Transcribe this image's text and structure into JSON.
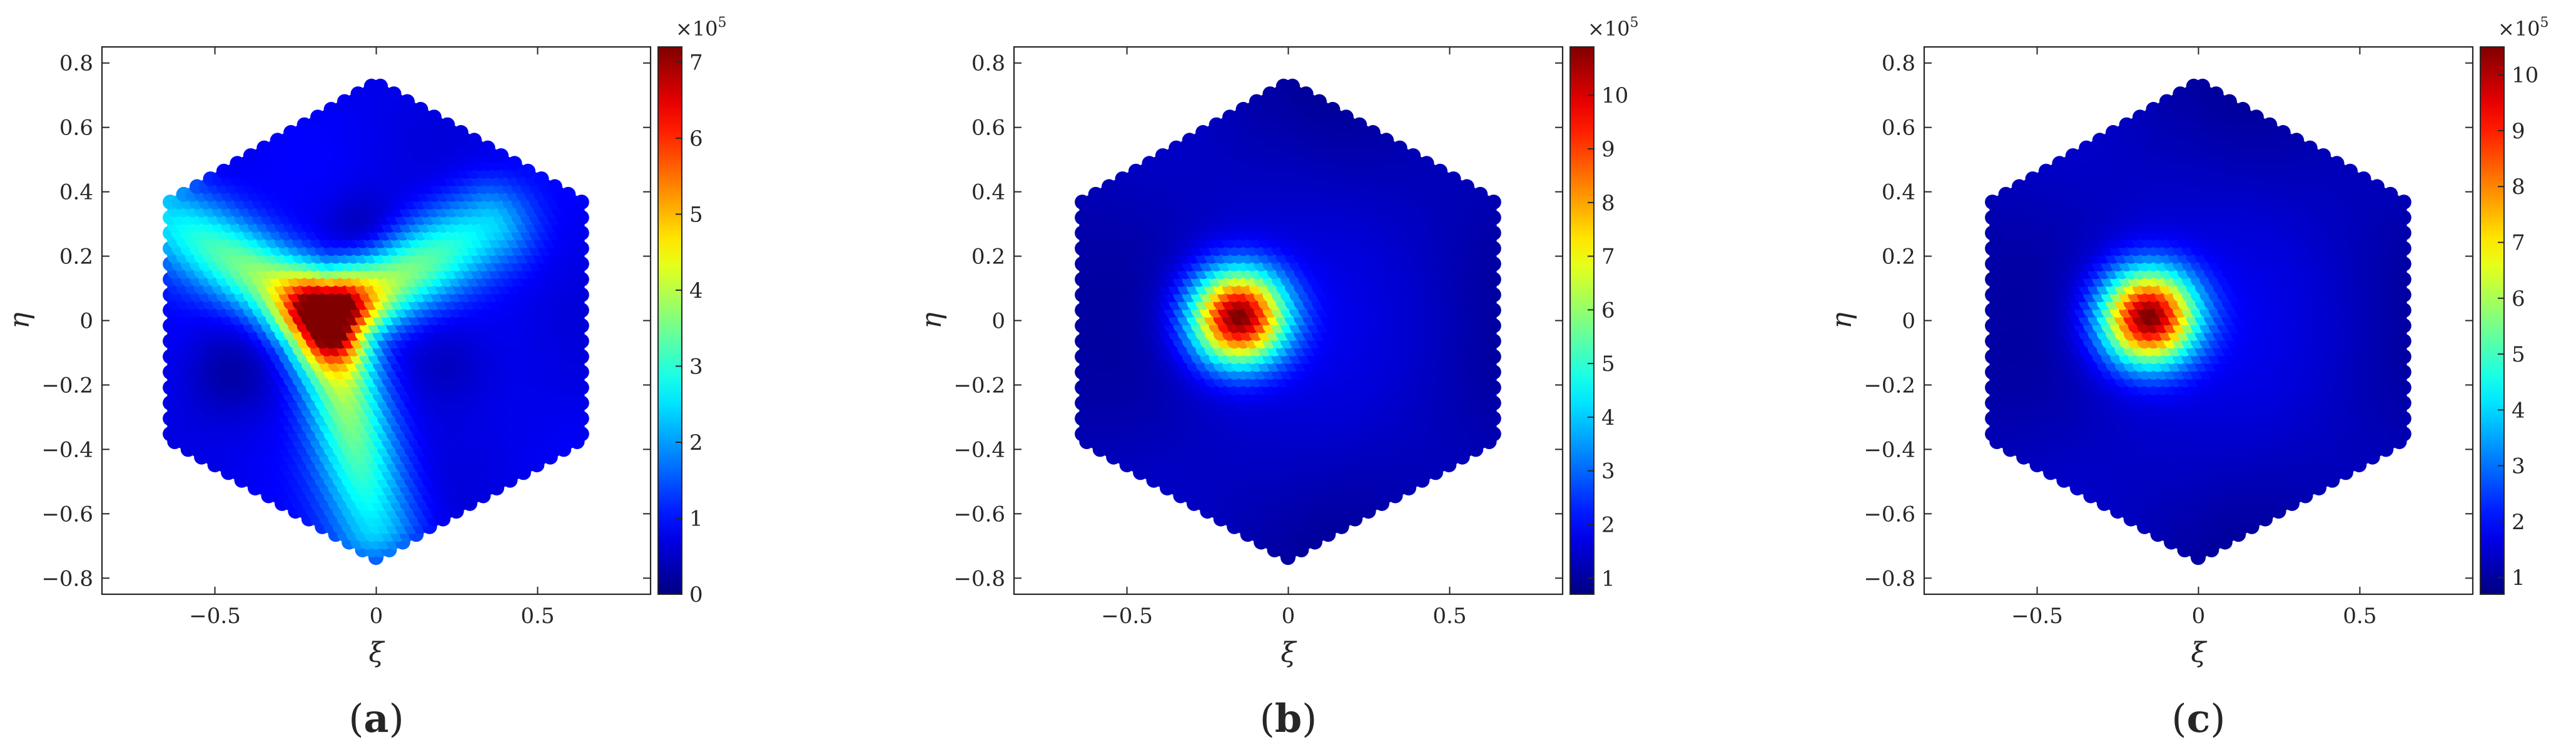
{
  "chart_data": [
    {
      "type": "heatmap",
      "panel_label": "a",
      "xlabel": "ξ",
      "ylabel": "η",
      "xlim": [
        -0.85,
        0.85
      ],
      "ylim": [
        -0.85,
        0.85
      ],
      "x_ticks": [
        "−0.5",
        "0",
        "0.5"
      ],
      "y_ticks": [
        "0.8",
        "0.6",
        "0.4",
        "0.2",
        "0",
        "−0.2",
        "−0.4",
        "−0.6",
        "−0.8"
      ],
      "domain": "hexagon",
      "hexagon_vertices": [
        [
          0,
          0.75
        ],
        [
          0.65,
          0.375
        ],
        [
          0.65,
          -0.375
        ],
        [
          0,
          -0.75
        ],
        [
          -0.65,
          -0.375
        ],
        [
          -0.65,
          0.375
        ]
      ],
      "colormap": "jet",
      "colorbar": {
        "min": 0,
        "max": 7.2,
        "ticks": [
          "0",
          "1",
          "2",
          "3",
          "4",
          "5",
          "6",
          "7"
        ],
        "multiplier": "×10",
        "exponent": "5"
      },
      "pattern": "three-armed star centered near (-0.15, 0.02), arms toward upper-left, upper-right and bottom",
      "peak": {
        "x": -0.15,
        "y": 0.02,
        "value": 7.2
      },
      "background_value": 0.9
    },
    {
      "type": "heatmap",
      "panel_label": "b",
      "xlabel": "ξ",
      "ylabel": "η",
      "xlim": [
        -0.85,
        0.85
      ],
      "ylim": [
        -0.85,
        0.85
      ],
      "x_ticks": [
        "−0.5",
        "0",
        "0.5"
      ],
      "y_ticks": [
        "0.8",
        "0.6",
        "0.4",
        "0.2",
        "0",
        "−0.2",
        "−0.4",
        "−0.6",
        "−0.8"
      ],
      "domain": "hexagon",
      "hexagon_vertices": [
        [
          0,
          0.75
        ],
        [
          0.65,
          0.375
        ],
        [
          0.65,
          -0.375
        ],
        [
          0,
          -0.75
        ],
        [
          -0.65,
          -0.375
        ],
        [
          -0.65,
          0.375
        ]
      ],
      "colormap": "jet",
      "colorbar": {
        "min": 0.7,
        "max": 10.9,
        "ticks": [
          "1",
          "2",
          "3",
          "4",
          "5",
          "6",
          "7",
          "8",
          "9",
          "10"
        ],
        "multiplier": "×10",
        "exponent": "5"
      },
      "pattern": "single circular peak",
      "peak": {
        "x": -0.15,
        "y": 0.02,
        "value": 10.9
      },
      "background_value": 1.4
    },
    {
      "type": "heatmap",
      "panel_label": "c",
      "xlabel": "ξ",
      "ylabel": "η",
      "xlim": [
        -0.85,
        0.85
      ],
      "ylim": [
        -0.85,
        0.85
      ],
      "x_ticks": [
        "−0.5",
        "0",
        "0.5"
      ],
      "y_ticks": [
        "0.8",
        "0.6",
        "0.4",
        "0.2",
        "0",
        "−0.2",
        "−0.4",
        "−0.6",
        "−0.8"
      ],
      "domain": "hexagon",
      "hexagon_vertices": [
        [
          0,
          0.75
        ],
        [
          0.65,
          0.375
        ],
        [
          0.65,
          -0.375
        ],
        [
          0,
          -0.75
        ],
        [
          -0.65,
          -0.375
        ],
        [
          -0.65,
          0.375
        ]
      ],
      "colormap": "jet",
      "colorbar": {
        "min": 0.7,
        "max": 10.5,
        "ticks": [
          "1",
          "2",
          "3",
          "4",
          "5",
          "6",
          "7",
          "8",
          "9",
          "10"
        ],
        "multiplier": "×10",
        "exponent": "5"
      },
      "pattern": "single circular peak",
      "peak": {
        "x": -0.15,
        "y": 0.02,
        "value": 10.5
      },
      "background_value": 1.4
    }
  ]
}
